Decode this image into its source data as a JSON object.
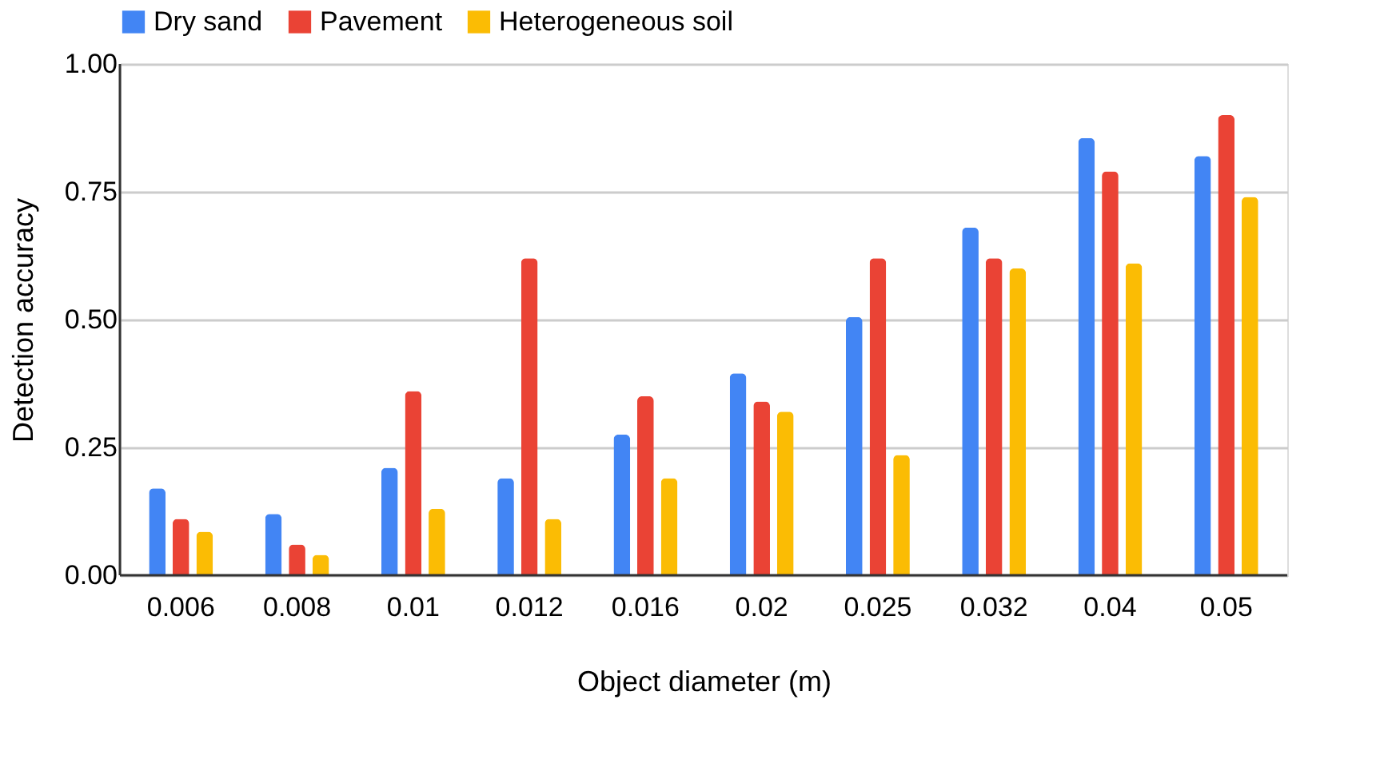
{
  "chart_data": {
    "type": "bar",
    "xlabel": "Object diameter (m)",
    "ylabel": "Detection accuracy",
    "categories": [
      "0.006",
      "0.008",
      "0.01",
      "0.012",
      "0.016",
      "0.02",
      "0.025",
      "0.032",
      "0.04",
      "0.05"
    ],
    "series": [
      {
        "name": "Dry sand",
        "color": "#4285f4",
        "values": [
          0.17,
          0.12,
          0.21,
          0.19,
          0.275,
          0.395,
          0.505,
          0.68,
          0.855,
          0.82
        ]
      },
      {
        "name": "Pavement",
        "color": "#ea4335",
        "values": [
          0.11,
          0.06,
          0.36,
          0.62,
          0.35,
          0.34,
          0.62,
          0.62,
          0.79,
          0.9
        ]
      },
      {
        "name": "Heterogeneous soil",
        "color": "#fbbc04",
        "values": [
          0.085,
          0.04,
          0.13,
          0.11,
          0.19,
          0.32,
          0.235,
          0.6,
          0.61,
          0.74
        ]
      }
    ],
    "ylim": [
      0,
      1
    ],
    "yticks": [
      {
        "value": 0,
        "label": "0.00"
      },
      {
        "value": 0.25,
        "label": "0.25"
      },
      {
        "value": 0.5,
        "label": "0.50"
      },
      {
        "value": 0.75,
        "label": "0.75"
      },
      {
        "value": 1,
        "label": "1.00"
      }
    ],
    "grid": "y",
    "legend": "top"
  }
}
